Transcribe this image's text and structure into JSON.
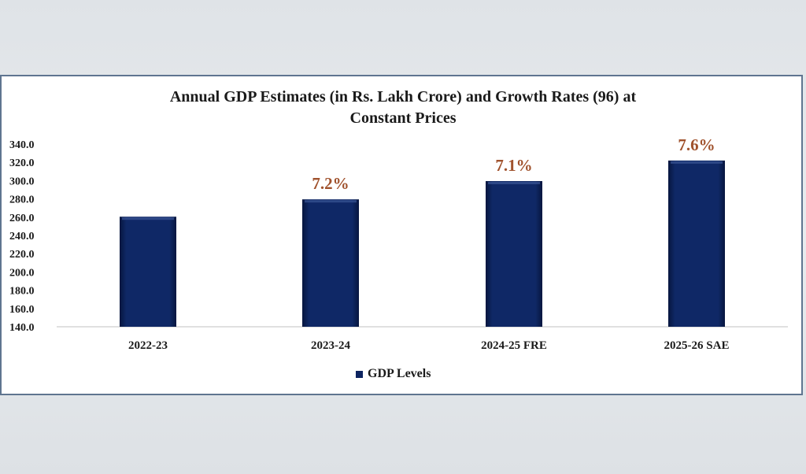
{
  "chart_data": {
    "type": "bar",
    "title": "Annual GDP Estimates (in Rs. Lakh Crore) and Growth Rates (96) at Constant Prices",
    "title_lines": [
      "Annual GDP Estimates (in Rs. Lakh Crore) and Growth Rates (96) at",
      "Constant Prices"
    ],
    "categories": [
      "2022-23",
      "2023-24",
      "2024-25 FRE",
      "2025-26 SAE"
    ],
    "series": [
      {
        "name": "GDP Levels",
        "values": [
          260.5,
          279.5,
          299.5,
          322.0
        ],
        "color": "#0d2460"
      }
    ],
    "data_labels": [
      "",
      "7.2%",
      "7.1%",
      "7.6%"
    ],
    "data_label_color": "#a0522d",
    "ylim": [
      140,
      340
    ],
    "yticks": [
      "140.0",
      "160.0",
      "180.0",
      "200.0",
      "220.0",
      "240.0",
      "260.0",
      "280.0",
      "300.0",
      "320.0",
      "340.0"
    ],
    "xlabel": "",
    "ylabel": "",
    "grid": false,
    "legend": "bottom"
  }
}
